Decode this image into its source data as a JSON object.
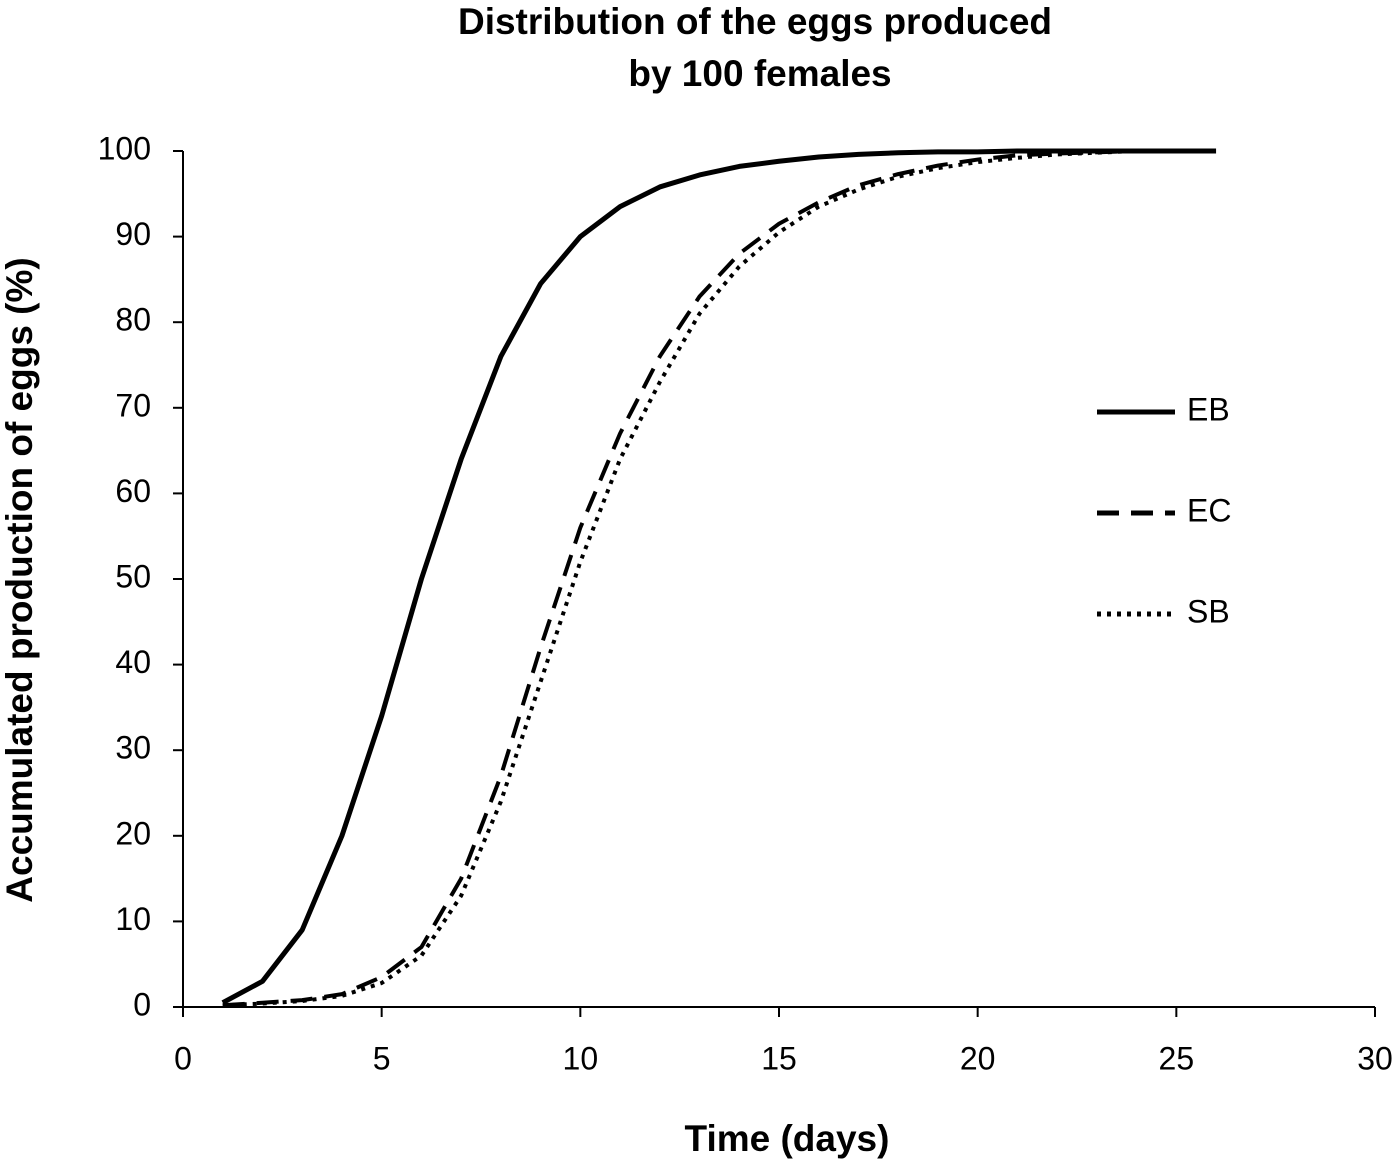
{
  "chart_data": {
    "type": "line",
    "title": [
      "Distribution of the eggs produced",
      "by 100 females"
    ],
    "x_label": "Time (days)",
    "y_label": "Accumulated production of eggs (%)",
    "x": [
      1,
      2,
      3,
      4,
      5,
      6,
      7,
      8,
      9,
      10,
      11,
      12,
      13,
      14,
      15,
      16,
      17,
      18,
      19,
      20,
      21,
      22,
      24,
      26
    ],
    "series": [
      {
        "name": "EB",
        "color": "#000000",
        "dash": "solid",
        "values": [
          0.5,
          3,
          9,
          20,
          34,
          50,
          64,
          76,
          84.5,
          90,
          93.5,
          95.8,
          97.2,
          98.2,
          98.8,
          99.3,
          99.6,
          99.8,
          99.9,
          99.9,
          100,
          100,
          100,
          100
        ]
      },
      {
        "name": "EC",
        "color": "#000000",
        "dash": "dashed",
        "values": [
          0.2,
          0.5,
          0.8,
          1.5,
          3.5,
          7,
          15,
          27,
          42,
          56,
          67,
          76,
          83,
          88,
          91.5,
          94,
          96,
          97.3,
          98.3,
          99,
          99.5,
          99.7,
          100,
          null
        ]
      },
      {
        "name": "SB",
        "color": "#000000",
        "dash": "dotted",
        "values": [
          0.2,
          0.4,
          0.7,
          1.3,
          2.8,
          6,
          13,
          24,
          38,
          52,
          64,
          73,
          81,
          86.5,
          90.5,
          93.5,
          95.5,
          97,
          98,
          98.7,
          99.2,
          99.6,
          100,
          null
        ]
      }
    ],
    "xlim": [
      0,
      30
    ],
    "xticks": [
      0,
      5,
      10,
      15,
      20,
      25,
      30
    ],
    "ylim": [
      0,
      100
    ],
    "yticks": [
      0,
      10,
      20,
      30,
      40,
      50,
      60,
      70,
      80,
      90,
      100
    ],
    "grid": false,
    "legend": "right"
  }
}
